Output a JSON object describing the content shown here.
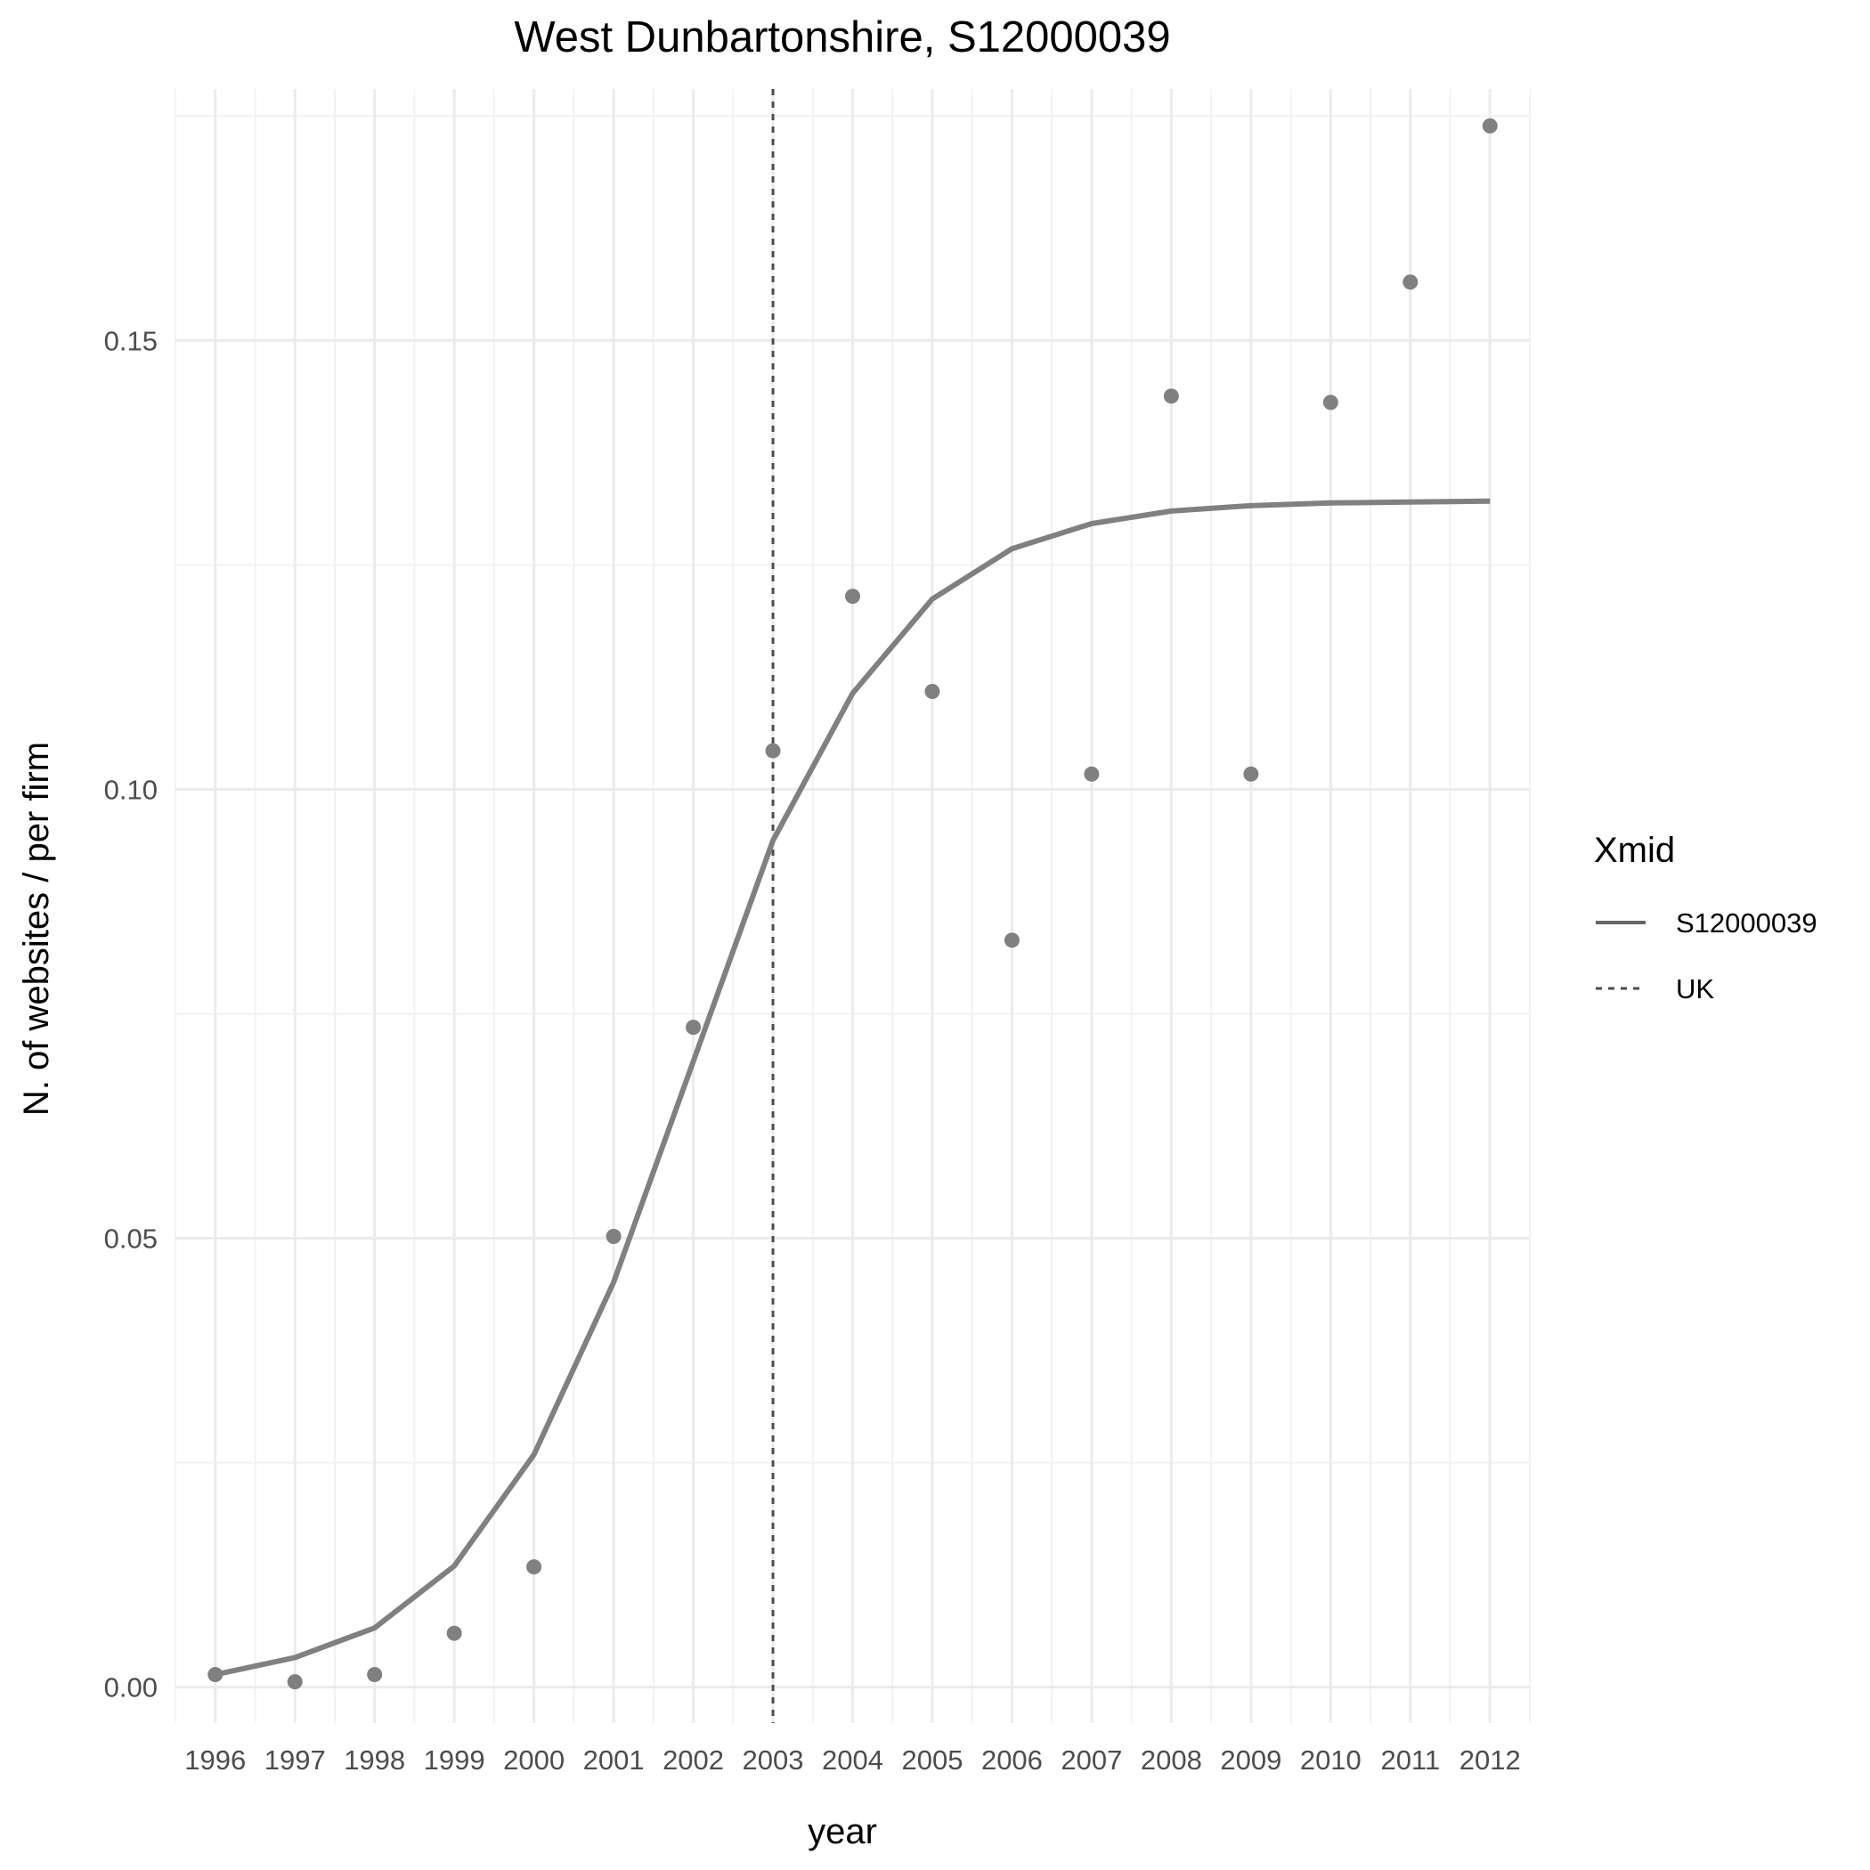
{
  "chart_data": {
    "type": "line",
    "title": "West Dunbartonshire, S12000039",
    "xlabel": "year",
    "ylabel": "N. of websites / per firm",
    "x": [
      1996,
      1997,
      1998,
      1999,
      2000,
      2001,
      2002,
      2003,
      2004,
      2005,
      2006,
      2007,
      2008,
      2009,
      2010,
      2011,
      2012
    ],
    "x_tick_labels": [
      "1996",
      "1997",
      "1998",
      "1999",
      "2000",
      "2001",
      "2002",
      "2003",
      "2004",
      "2005",
      "2006",
      "2007",
      "2008",
      "2009",
      "2010",
      "2011",
      "2012"
    ],
    "y_ticks": [
      0.0,
      0.05,
      0.1,
      0.15
    ],
    "y_tick_labels": [
      "0.00",
      "0.05",
      "0.10",
      "0.15"
    ],
    "xlim": [
      1995.5,
      2012.5
    ],
    "ylim": [
      -0.004,
      0.178
    ],
    "grid": true,
    "points": {
      "values": [
        0.0014,
        0.0006,
        0.0014,
        0.006,
        0.0134,
        0.0502,
        0.0735,
        0.1043,
        0.1215,
        0.1109,
        0.0832,
        0.1017,
        0.1438,
        0.1017,
        0.1431,
        0.1565,
        0.1739
      ],
      "color": "#808080"
    },
    "series": [
      {
        "name": "S12000039",
        "linetype": "solid",
        "values": [
          0.0014,
          0.0033,
          0.0066,
          0.0135,
          0.0259,
          0.0451,
          0.0697,
          0.0943,
          0.1107,
          0.1212,
          0.1268,
          0.1296,
          0.131,
          0.1316,
          0.1319,
          0.132,
          0.1321
        ],
        "color": "#808080"
      }
    ],
    "vline": {
      "x": 2003,
      "linetype": "dashed",
      "color": "#4d4d4d",
      "name": "UK"
    },
    "legend": {
      "title": "Xmid",
      "position": "right",
      "entries": [
        {
          "label": "S12000039",
          "linetype": "solid"
        },
        {
          "label": "UK",
          "linetype": "dashed"
        }
      ]
    }
  }
}
